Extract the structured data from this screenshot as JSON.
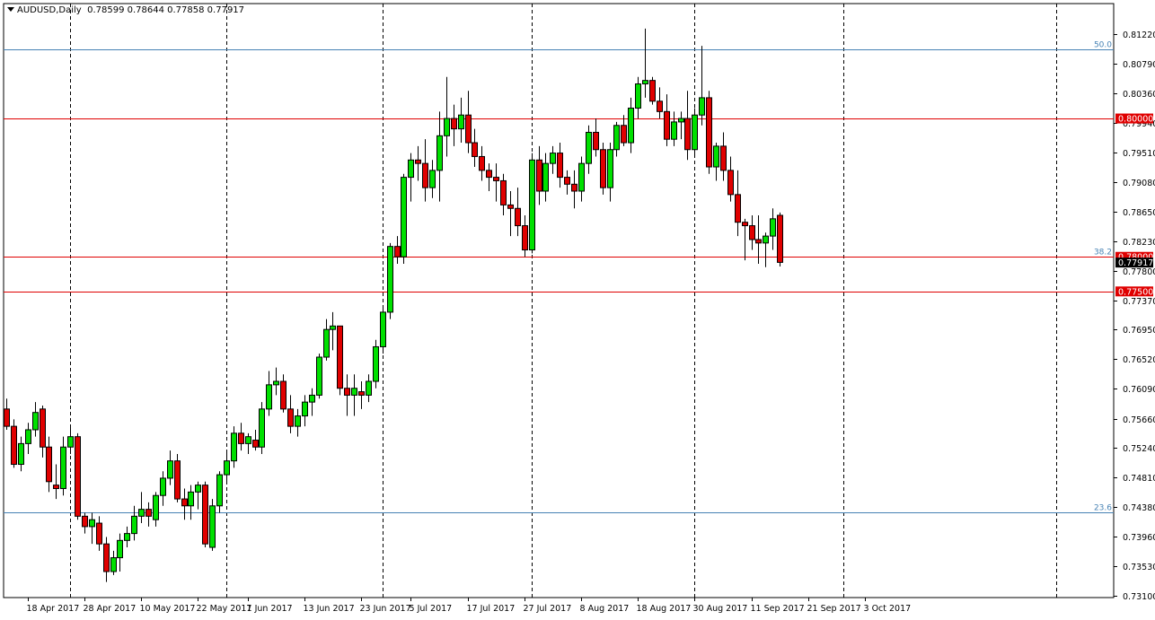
{
  "header": {
    "symbol": "AUDUSD,Daily",
    "ohlc": "0.78599 0.78644 0.77858 0.77917"
  },
  "colors": {
    "bull": "#00e000",
    "bear": "#e00000",
    "wick": "#000000",
    "fib": "#4682b4",
    "level": "#e00000",
    "grid": "#000000"
  },
  "chart_data": {
    "type": "candlestick",
    "symbol": "AUDUSD",
    "timeframe": "Daily",
    "ylim": [
      0.731,
      0.8145
    ],
    "yticks": [
      "0.81220",
      "0.80790",
      "0.80360",
      "0.79940",
      "0.79510",
      "0.79080",
      "0.78650",
      "0.78230",
      "0.77800",
      "0.77370",
      "0.76950",
      "0.76520",
      "0.76090",
      "0.75660",
      "0.75240",
      "0.74810",
      "0.74380",
      "0.73960",
      "0.73530",
      "0.73100"
    ],
    "xticks": [
      {
        "label": "18 Apr 2017",
        "bar": 3
      },
      {
        "label": "28 Apr 2017",
        "bar": 11
      },
      {
        "label": "10 May 2017",
        "bar": 19
      },
      {
        "label": "22 May 2017",
        "bar": 27
      },
      {
        "label": "1 Jun 2017",
        "bar": 34
      },
      {
        "label": "13 Jun 2017",
        "bar": 42
      },
      {
        "label": "23 Jun 2017",
        "bar": 50
      },
      {
        "label": "5 Jul 2017",
        "bar": 57
      },
      {
        "label": "17 Jul 2017",
        "bar": 65
      },
      {
        "label": "27 Jul 2017",
        "bar": 73
      },
      {
        "label": "8 Aug 2017",
        "bar": 81
      },
      {
        "label": "18 Aug 2017",
        "bar": 89
      },
      {
        "label": "30 Aug 2017",
        "bar": 97
      },
      {
        "label": "11 Sep 2017",
        "bar": 105
      },
      {
        "label": "21 Sep 2017",
        "bar": 113
      },
      {
        "label": "3 Oct 2017",
        "bar": 121
      }
    ],
    "vlines_bars": [
      9,
      31,
      53,
      74,
      97,
      118,
      148
    ],
    "fib_levels": [
      {
        "label": "50.0",
        "price": 0.81
      },
      {
        "label": "38.2",
        "price": 0.78
      },
      {
        "label": "23.6",
        "price": 0.743
      }
    ],
    "horizontal_levels": [
      {
        "label": "0.80000",
        "price": 0.8
      },
      {
        "label": "0.78000",
        "price": 0.78
      },
      {
        "label": "0.77500",
        "price": 0.775
      }
    ],
    "current_price": "0.77917",
    "candles": [
      [
        0.758,
        0.7595,
        0.755,
        0.7555
      ],
      [
        0.7555,
        0.7565,
        0.7495,
        0.75
      ],
      [
        0.75,
        0.754,
        0.749,
        0.753
      ],
      [
        0.753,
        0.756,
        0.7515,
        0.755
      ],
      [
        0.755,
        0.759,
        0.754,
        0.7575
      ],
      [
        0.758,
        0.7585,
        0.751,
        0.7525
      ],
      [
        0.7525,
        0.754,
        0.746,
        0.7475
      ],
      [
        0.747,
        0.75,
        0.745,
        0.7465
      ],
      [
        0.7465,
        0.754,
        0.7455,
        0.7525
      ],
      [
        0.7525,
        0.7555,
        0.7515,
        0.754
      ],
      [
        0.754,
        0.7545,
        0.742,
        0.7425
      ],
      [
        0.7425,
        0.743,
        0.74,
        0.741
      ],
      [
        0.741,
        0.743,
        0.7385,
        0.742
      ],
      [
        0.7415,
        0.7425,
        0.7375,
        0.7385
      ],
      [
        0.7385,
        0.7395,
        0.733,
        0.7345
      ],
      [
        0.7345,
        0.7375,
        0.734,
        0.7365
      ],
      [
        0.7365,
        0.74,
        0.7345,
        0.739
      ],
      [
        0.739,
        0.741,
        0.738,
        0.74
      ],
      [
        0.74,
        0.744,
        0.739,
        0.7425
      ],
      [
        0.7425,
        0.746,
        0.7415,
        0.7435
      ],
      [
        0.7435,
        0.7445,
        0.741,
        0.7425
      ],
      [
        0.742,
        0.746,
        0.741,
        0.7455
      ],
      [
        0.7455,
        0.749,
        0.744,
        0.748
      ],
      [
        0.748,
        0.752,
        0.747,
        0.7505
      ],
      [
        0.7505,
        0.7515,
        0.7445,
        0.745
      ],
      [
        0.745,
        0.7465,
        0.742,
        0.744
      ],
      [
        0.744,
        0.747,
        0.742,
        0.746
      ],
      [
        0.746,
        0.7475,
        0.7435,
        0.747
      ],
      [
        0.747,
        0.7475,
        0.738,
        0.7385
      ],
      [
        0.738,
        0.745,
        0.7375,
        0.744
      ],
      [
        0.744,
        0.749,
        0.743,
        0.7485
      ],
      [
        0.7485,
        0.752,
        0.7475,
        0.7505
      ],
      [
        0.7505,
        0.7555,
        0.7495,
        0.7545
      ],
      [
        0.7545,
        0.756,
        0.752,
        0.753
      ],
      [
        0.753,
        0.7545,
        0.7515,
        0.754
      ],
      [
        0.7535,
        0.755,
        0.752,
        0.7525
      ],
      [
        0.7525,
        0.759,
        0.7515,
        0.758
      ],
      [
        0.758,
        0.7635,
        0.757,
        0.7615
      ],
      [
        0.7615,
        0.764,
        0.76,
        0.762
      ],
      [
        0.762,
        0.763,
        0.7575,
        0.758
      ],
      [
        0.758,
        0.76,
        0.7545,
        0.7555
      ],
      [
        0.7555,
        0.758,
        0.754,
        0.757
      ],
      [
        0.757,
        0.76,
        0.7555,
        0.759
      ],
      [
        0.759,
        0.761,
        0.757,
        0.76
      ],
      [
        0.76,
        0.766,
        0.7595,
        0.7655
      ],
      [
        0.7655,
        0.771,
        0.765,
        0.7695
      ],
      [
        0.7695,
        0.772,
        0.7665,
        0.77
      ],
      [
        0.77,
        0.77,
        0.76,
        0.761
      ],
      [
        0.761,
        0.763,
        0.757,
        0.76
      ],
      [
        0.76,
        0.763,
        0.757,
        0.761
      ],
      [
        0.7605,
        0.762,
        0.758,
        0.76
      ],
      [
        0.76,
        0.763,
        0.759,
        0.762
      ],
      [
        0.762,
        0.768,
        0.761,
        0.767
      ],
      [
        0.767,
        0.773,
        0.766,
        0.772
      ],
      [
        0.772,
        0.782,
        0.771,
        0.7815
      ],
      [
        0.7815,
        0.783,
        0.779,
        0.78
      ],
      [
        0.78,
        0.792,
        0.779,
        0.7915
      ],
      [
        0.7915,
        0.795,
        0.788,
        0.794
      ],
      [
        0.794,
        0.796,
        0.791,
        0.7935
      ],
      [
        0.7935,
        0.797,
        0.788,
        0.79
      ],
      [
        0.79,
        0.794,
        0.7885,
        0.7925
      ],
      [
        0.7925,
        0.801,
        0.788,
        0.7975
      ],
      [
        0.7975,
        0.806,
        0.7945,
        0.8
      ],
      [
        0.8,
        0.802,
        0.796,
        0.7985
      ],
      [
        0.7985,
        0.803,
        0.7965,
        0.8005
      ],
      [
        0.8005,
        0.804,
        0.795,
        0.7965
      ],
      [
        0.7965,
        0.7985,
        0.793,
        0.7945
      ],
      [
        0.7945,
        0.796,
        0.791,
        0.7925
      ],
      [
        0.7925,
        0.7935,
        0.7895,
        0.7915
      ],
      [
        0.7915,
        0.7935,
        0.788,
        0.791
      ],
      [
        0.791,
        0.792,
        0.786,
        0.7875
      ],
      [
        0.7875,
        0.7895,
        0.783,
        0.787
      ],
      [
        0.787,
        0.79,
        0.783,
        0.7845
      ],
      [
        0.7845,
        0.786,
        0.78,
        0.781
      ],
      [
        0.781,
        0.795,
        0.7805,
        0.794
      ],
      [
        0.794,
        0.796,
        0.7875,
        0.7895
      ],
      [
        0.7895,
        0.795,
        0.788,
        0.7935
      ],
      [
        0.7935,
        0.796,
        0.792,
        0.795
      ],
      [
        0.795,
        0.7965,
        0.79,
        0.7915
      ],
      [
        0.7915,
        0.7925,
        0.789,
        0.7905
      ],
      [
        0.7905,
        0.7925,
        0.787,
        0.7895
      ],
      [
        0.7895,
        0.7945,
        0.788,
        0.7935
      ],
      [
        0.7935,
        0.799,
        0.792,
        0.798
      ],
      [
        0.798,
        0.8,
        0.7945,
        0.7955
      ],
      [
        0.7955,
        0.7965,
        0.789,
        0.79
      ],
      [
        0.79,
        0.7965,
        0.788,
        0.7955
      ],
      [
        0.7955,
        0.7995,
        0.7945,
        0.799
      ],
      [
        0.799,
        0.8005,
        0.796,
        0.7965
      ],
      [
        0.7965,
        0.803,
        0.795,
        0.8015
      ],
      [
        0.8015,
        0.806,
        0.8,
        0.805
      ],
      [
        0.805,
        0.813,
        0.803,
        0.8055
      ],
      [
        0.8055,
        0.806,
        0.802,
        0.8025
      ],
      [
        0.8025,
        0.8045,
        0.8,
        0.801
      ],
      [
        0.801,
        0.8035,
        0.796,
        0.797
      ],
      [
        0.797,
        0.801,
        0.796,
        0.7995
      ],
      [
        0.7995,
        0.801,
        0.797,
        0.8
      ],
      [
        0.8,
        0.804,
        0.794,
        0.7955
      ],
      [
        0.7955,
        0.8015,
        0.7945,
        0.8005
      ],
      [
        0.8005,
        0.8105,
        0.799,
        0.803
      ],
      [
        0.803,
        0.804,
        0.792,
        0.793
      ],
      [
        0.793,
        0.7965,
        0.791,
        0.796
      ],
      [
        0.796,
        0.798,
        0.791,
        0.7925
      ],
      [
        0.7925,
        0.7945,
        0.788,
        0.789
      ],
      [
        0.789,
        0.7925,
        0.783,
        0.785
      ],
      [
        0.785,
        0.7855,
        0.7795,
        0.7845
      ],
      [
        0.7845,
        0.786,
        0.781,
        0.7825
      ],
      [
        0.7825,
        0.786,
        0.779,
        0.782
      ],
      [
        0.782,
        0.7835,
        0.7785,
        0.783
      ],
      [
        0.783,
        0.787,
        0.781,
        0.7855
      ],
      [
        0.786,
        0.7864,
        0.7786,
        0.7792
      ]
    ]
  }
}
